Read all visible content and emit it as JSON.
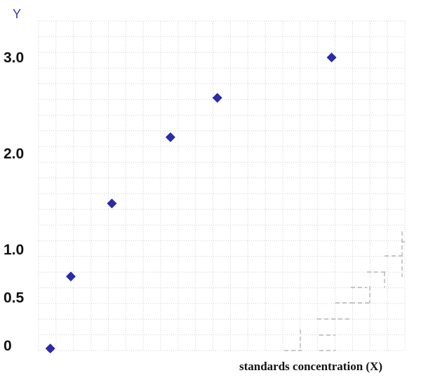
{
  "chart_data": {
    "type": "scatter",
    "title": "",
    "xlabel": "standards concentration (X)",
    "ylabel": "Y",
    "ylim": [
      -0.1,
      3.25
    ],
    "y_ticks": [
      {
        "value": 0,
        "label": "0"
      },
      {
        "value": 0.5,
        "label": "0.5"
      },
      {
        "value": 1.0,
        "label": "1.0"
      },
      {
        "value": 2.0,
        "label": "2.0"
      },
      {
        "value": 3.0,
        "label": "3.0"
      }
    ],
    "grid": true,
    "legend": "none",
    "series": [
      {
        "name": "standards",
        "color": "#2b2bb0",
        "marker": "diamond",
        "points": [
          {
            "x": 0.4,
            "y": -0.03
          },
          {
            "x": 1.1,
            "y": 0.72
          },
          {
            "x": 2.5,
            "y": 1.48
          },
          {
            "x": 4.5,
            "y": 2.17
          },
          {
            "x": 6.1,
            "y": 2.58
          },
          {
            "x": 10.0,
            "y": 3.0
          }
        ]
      }
    ],
    "xlim": [
      0,
      12.5
    ]
  },
  "colors": {
    "grid": "#cfcfcf",
    "marker": "#2b2bb0",
    "ylabel": "#3a3ab4",
    "ghost_lines": "#a8a8a8"
  }
}
